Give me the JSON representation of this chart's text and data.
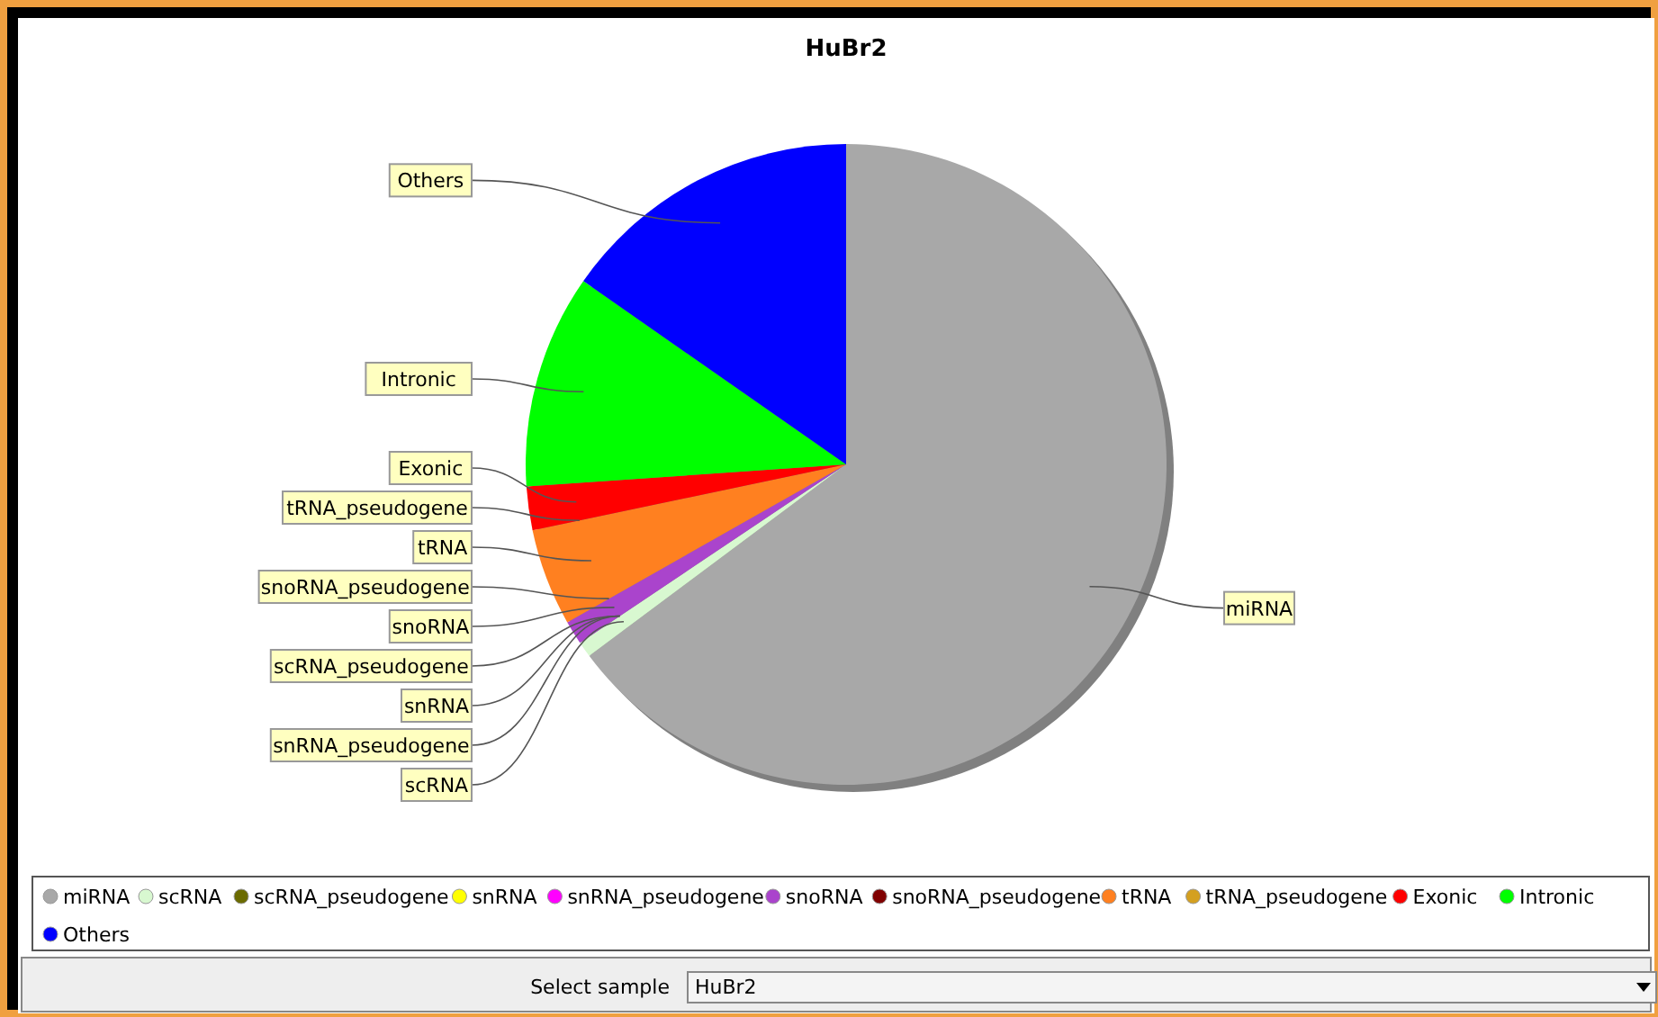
{
  "chart_data": {
    "type": "pie",
    "title": "HuBr2",
    "categories": [
      "miRNA",
      "scRNA",
      "scRNA_pseudogene",
      "snRNA",
      "snRNA_pseudogene",
      "snoRNA",
      "snoRNA_pseudogene",
      "tRNA",
      "tRNA_pseudogene",
      "Exonic",
      "Intronic",
      "Others"
    ],
    "values": [
      64.8,
      0.8,
      0,
      0,
      0,
      1.2,
      0,
      4.9,
      0,
      2.2,
      10.8,
      15.3
    ],
    "colors": [
      "#a8a8a8",
      "#d8f8d0",
      "#6b6b00",
      "#ffff00",
      "#ff00ff",
      "#aa44cc",
      "#800000",
      "#ff8020",
      "#d4a020",
      "#ff0000",
      "#00ff00",
      "#0000ff"
    ],
    "legend": "bottom",
    "annotations": [
      "Select sample",
      "HuBr2"
    ]
  }
}
